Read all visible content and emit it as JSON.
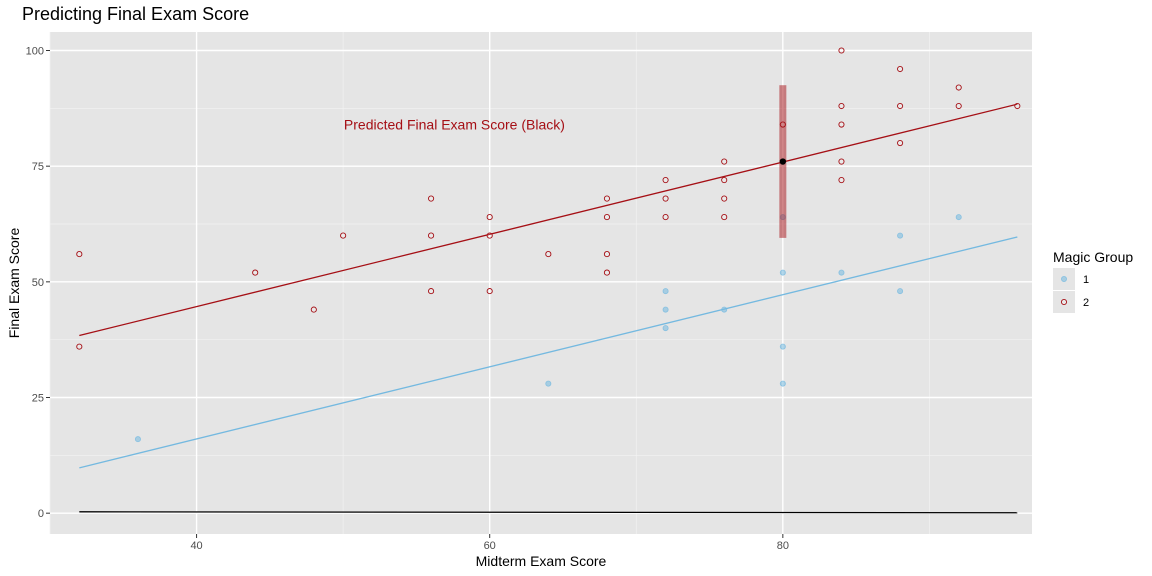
{
  "chart_data": {
    "type": "scatter",
    "title": "Predicting Final Exam Score",
    "xlabel": "Midterm Exam Score",
    "ylabel": "Final Exam Score",
    "xlim": [
      30,
      97
    ],
    "ylim": [
      -4.5,
      104
    ],
    "x_ticks": [
      40,
      60,
      80
    ],
    "y_ticks": [
      0,
      25,
      50,
      75,
      100
    ],
    "x_minor": [
      30,
      50,
      70,
      90
    ],
    "y_minor": [
      12.5,
      37.5,
      62.5,
      87.5
    ],
    "grid": true,
    "legend": {
      "title": "Magic Group",
      "position": "right",
      "entries": [
        {
          "label": "1",
          "color": "#74b9e0"
        },
        {
          "label": "2",
          "color": "#a50f15"
        }
      ]
    },
    "series": [
      {
        "name": "1",
        "color": "#74b9e0",
        "points": [
          {
            "x": 36,
            "y": 16
          },
          {
            "x": 64,
            "y": 28
          },
          {
            "x": 72,
            "y": 48
          },
          {
            "x": 72,
            "y": 44
          },
          {
            "x": 72,
            "y": 40
          },
          {
            "x": 76,
            "y": 44
          },
          {
            "x": 80,
            "y": 52
          },
          {
            "x": 80,
            "y": 36
          },
          {
            "x": 80,
            "y": 28
          },
          {
            "x": 80,
            "y": 64
          },
          {
            "x": 84,
            "y": 52
          },
          {
            "x": 88,
            "y": 60
          },
          {
            "x": 88,
            "y": 48
          },
          {
            "x": 92,
            "y": 64
          }
        ],
        "fit_line": {
          "x": [
            32,
            96
          ],
          "y": [
            9.8,
            59.7
          ]
        }
      },
      {
        "name": "2",
        "color": "#a50f15",
        "points": [
          {
            "x": 32,
            "y": 56
          },
          {
            "x": 32,
            "y": 36
          },
          {
            "x": 44,
            "y": 52
          },
          {
            "x": 48,
            "y": 44
          },
          {
            "x": 50,
            "y": 60
          },
          {
            "x": 56,
            "y": 68
          },
          {
            "x": 56,
            "y": 60
          },
          {
            "x": 56,
            "y": 48
          },
          {
            "x": 60,
            "y": 64
          },
          {
            "x": 60,
            "y": 60
          },
          {
            "x": 60,
            "y": 48
          },
          {
            "x": 64,
            "y": 56
          },
          {
            "x": 68,
            "y": 68
          },
          {
            "x": 68,
            "y": 64
          },
          {
            "x": 68,
            "y": 56
          },
          {
            "x": 68,
            "y": 52
          },
          {
            "x": 72,
            "y": 72
          },
          {
            "x": 72,
            "y": 68
          },
          {
            "x": 72,
            "y": 64
          },
          {
            "x": 76,
            "y": 76
          },
          {
            "x": 76,
            "y": 72
          },
          {
            "x": 76,
            "y": 68
          },
          {
            "x": 76,
            "y": 64
          },
          {
            "x": 80,
            "y": 84
          },
          {
            "x": 84,
            "y": 100
          },
          {
            "x": 84,
            "y": 88
          },
          {
            "x": 84,
            "y": 84
          },
          {
            "x": 84,
            "y": 76
          },
          {
            "x": 84,
            "y": 72
          },
          {
            "x": 88,
            "y": 96
          },
          {
            "x": 88,
            "y": 88
          },
          {
            "x": 88,
            "y": 80
          },
          {
            "x": 92,
            "y": 92
          },
          {
            "x": 92,
            "y": 88
          },
          {
            "x": 96,
            "y": 88
          }
        ],
        "fit_line": {
          "x": [
            32,
            96
          ],
          "y": [
            38.4,
            88.4
          ]
        }
      }
    ],
    "black_line": {
      "x": [
        32,
        96
      ],
      "y": [
        0.3,
        0.1
      ]
    },
    "prediction": {
      "x": 80,
      "y": 76,
      "interval": [
        59.5,
        92.5
      ],
      "band_color": "#a50f15",
      "point_color": "#000000"
    },
    "annotation": {
      "text": "Predicted Final Exam Score (Black)",
      "x": 55,
      "y": 84
    }
  }
}
